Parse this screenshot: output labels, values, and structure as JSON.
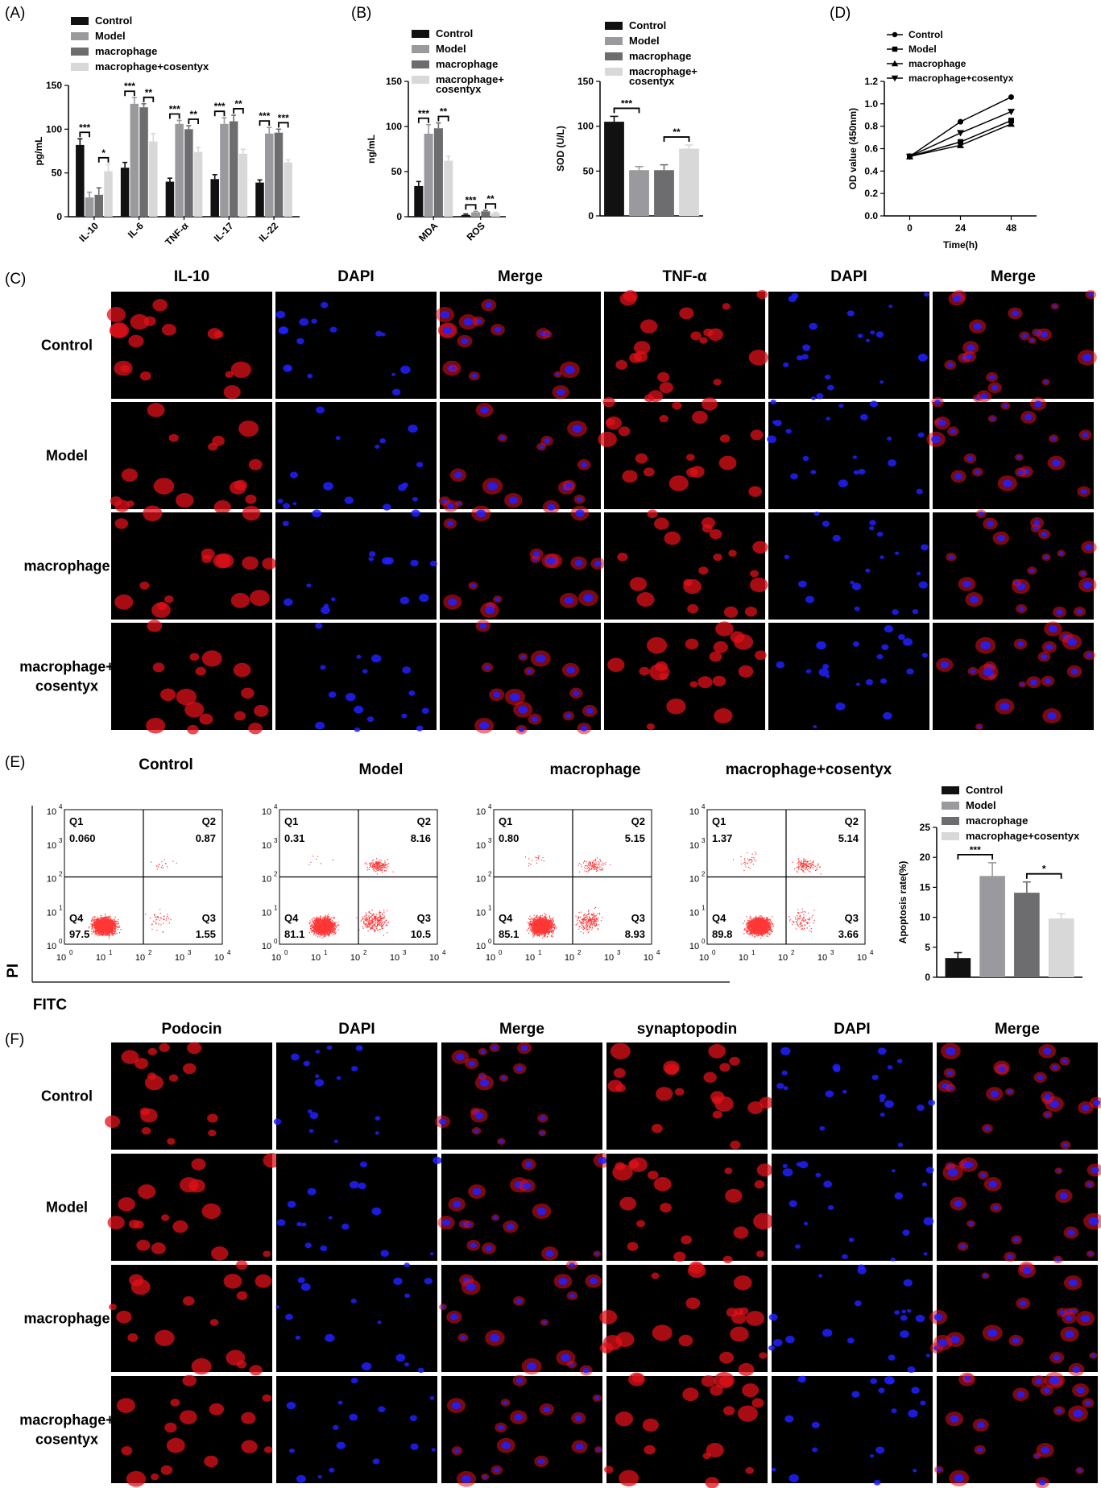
{
  "colors": {
    "Control": "#111111",
    "Model": "#9a9a9e",
    "macrophage": "#6d6d70",
    "macrophage+cosentyx": "#d8d8d8",
    "red_stain": "#e0101a",
    "blue_stain": "#2020ff",
    "flow_dot": "#ff2020"
  },
  "panel_labels": {
    "A": "(A)",
    "B": "(B)",
    "C": "(C)",
    "D": "(D)",
    "E": "(E)",
    "F": "(F)"
  },
  "groups": [
    "Control",
    "Model",
    "macrophage",
    "macrophage+cosentyx"
  ],
  "legend_wrapped": [
    "macrophage+",
    "cosentyx"
  ],
  "chart_data": [
    {
      "id": "A",
      "type": "bar",
      "ylabel": "pg/mL",
      "ylim": [
        0,
        150
      ],
      "yticks": [
        0,
        50,
        100,
        150
      ],
      "categories": [
        "IL-10",
        "IL-6",
        "TNF-α",
        "IL-17",
        "IL-22"
      ],
      "series": [
        {
          "name": "Control",
          "values": [
            82,
            56,
            40,
            43,
            39
          ],
          "errors": [
            7,
            6,
            4,
            5,
            3
          ]
        },
        {
          "name": "Model",
          "values": [
            22,
            129,
            106,
            106,
            95
          ],
          "errors": [
            6,
            7,
            4,
            7,
            7
          ]
        },
        {
          "name": "macrophage",
          "values": [
            25,
            125,
            100,
            109,
            96
          ],
          "errors": [
            8,
            4,
            4,
            7,
            4
          ]
        },
        {
          "name": "macrophage+cosentyx",
          "values": [
            52,
            86,
            74,
            72,
            62
          ],
          "errors": [
            8,
            9,
            5,
            5,
            3
          ]
        }
      ],
      "significance": [
        {
          "category": 0,
          "pair": [
            0,
            1
          ],
          "label": "***"
        },
        {
          "category": 0,
          "pair": [
            2,
            3
          ],
          "label": "*"
        },
        {
          "category": 1,
          "pair": [
            0,
            1
          ],
          "label": "***"
        },
        {
          "category": 1,
          "pair": [
            2,
            3
          ],
          "label": "**"
        },
        {
          "category": 2,
          "pair": [
            0,
            1
          ],
          "label": "***"
        },
        {
          "category": 2,
          "pair": [
            2,
            3
          ],
          "label": "**"
        },
        {
          "category": 3,
          "pair": [
            0,
            1
          ],
          "label": "***"
        },
        {
          "category": 3,
          "pair": [
            2,
            3
          ],
          "label": "**"
        },
        {
          "category": 4,
          "pair": [
            0,
            1
          ],
          "label": "***"
        },
        {
          "category": 4,
          "pair": [
            2,
            3
          ],
          "label": "***"
        }
      ]
    },
    {
      "id": "B1",
      "type": "bar",
      "ylabel": "ng/mL",
      "ylim": [
        0,
        150
      ],
      "yticks": [
        0,
        50,
        100,
        150
      ],
      "categories": [
        "MDA",
        "ROS"
      ],
      "series": [
        {
          "name": "Control",
          "values": [
            34,
            2
          ],
          "errors": [
            5,
            1
          ]
        },
        {
          "name": "Model",
          "values": [
            92,
            5
          ],
          "errors": [
            10,
            1
          ]
        },
        {
          "name": "macrophage",
          "values": [
            98,
            6
          ],
          "errors": [
            6,
            1
          ]
        },
        {
          "name": "macrophage+cosentyx",
          "values": [
            62,
            4
          ],
          "errors": [
            5,
            1
          ]
        }
      ],
      "significance": [
        {
          "category": 0,
          "pair": [
            0,
            1
          ],
          "label": "***"
        },
        {
          "category": 0,
          "pair": [
            2,
            3
          ],
          "label": "**"
        },
        {
          "category": 1,
          "pair": [
            0,
            1
          ],
          "label": "***"
        },
        {
          "category": 1,
          "pair": [
            2,
            3
          ],
          "label": "**"
        }
      ]
    },
    {
      "id": "B2",
      "type": "bar",
      "ylabel": "SOD (U/L)",
      "ylim": [
        0,
        150
      ],
      "yticks": [
        0,
        50,
        100,
        150
      ],
      "categories": [
        "Control",
        "Model",
        "macrophage",
        "macrophage+cosentyx"
      ],
      "values": [
        105,
        51,
        51,
        75
      ],
      "errors": [
        6,
        4,
        6,
        4
      ],
      "significance": [
        {
          "pair": [
            0,
            1
          ],
          "label": "***"
        },
        {
          "pair": [
            2,
            3
          ],
          "label": "**"
        }
      ]
    },
    {
      "id": "D",
      "type": "line",
      "xlabel": "Time(h)",
      "ylabel": "OD value (450nm)",
      "x": [
        0,
        24,
        48
      ],
      "xlim": [
        -12,
        60
      ],
      "ylim": [
        0,
        1.2
      ],
      "yticks": [
        0.0,
        0.2,
        0.4,
        0.6,
        0.8,
        1.0,
        1.2
      ],
      "series": [
        {
          "name": "Control",
          "marker": "circle",
          "values": [
            0.53,
            0.84,
            1.06
          ]
        },
        {
          "name": "Model",
          "marker": "square",
          "values": [
            0.53,
            0.66,
            0.85
          ]
        },
        {
          "name": "macrophage",
          "marker": "triangle-up",
          "values": [
            0.53,
            0.63,
            0.82
          ]
        },
        {
          "name": "macrophage+cosentyx",
          "marker": "triangle-down",
          "values": [
            0.53,
            0.74,
            0.93
          ]
        }
      ]
    },
    {
      "id": "E-bar",
      "type": "bar",
      "ylabel": "Apoptosis rate(%)",
      "ylim": [
        0,
        25
      ],
      "yticks": [
        0,
        5,
        10,
        15,
        20,
        25
      ],
      "categories": [
        "Control",
        "Model",
        "macrophage",
        "macrophage+cosentyx"
      ],
      "values": [
        3.2,
        16.9,
        14.1,
        9.8
      ],
      "errors": [
        0.9,
        2.2,
        1.8,
        0.8
      ],
      "significance": [
        {
          "pair": [
            0,
            1
          ],
          "label": "***"
        },
        {
          "pair": [
            2,
            3
          ],
          "label": "*"
        }
      ]
    },
    {
      "id": "E-flow",
      "type": "scatter",
      "xlabel": "FITC",
      "ylabel": "PI",
      "tick_base": "10",
      "tick_exps": [
        "0",
        "1",
        "2",
        "3",
        "4"
      ],
      "quadrant_names": [
        "Q1",
        "Q2",
        "Q3",
        "Q4"
      ],
      "plots": [
        {
          "title": "Control",
          "Q1": "0.060",
          "Q2": "0.87",
          "Q3": "1.55",
          "Q4": "97.5"
        },
        {
          "title": "Model",
          "Q1": "0.31",
          "Q2": "8.16",
          "Q3": "10.5",
          "Q4": "81.1"
        },
        {
          "title": "macrophage",
          "Q1": "0.80",
          "Q2": "5.15",
          "Q3": "8.93",
          "Q4": "85.1"
        },
        {
          "title": "macrophage+cosentyx",
          "Q1": "1.37",
          "Q2": "5.14",
          "Q3": "3.66",
          "Q4": "89.8"
        }
      ]
    }
  ],
  "panel_C": {
    "columns": [
      "IL-10",
      "DAPI",
      "Merge",
      "TNF-α",
      "DAPI",
      "Merge"
    ],
    "rows": [
      "Control",
      "Model",
      "macrophage",
      "macrophage+\ncosentyx"
    ],
    "channels": [
      "red",
      "blue",
      "merge",
      "red",
      "blue",
      "merge"
    ]
  },
  "panel_F": {
    "columns": [
      "Podocin",
      "DAPI",
      "Merge",
      "synaptopodin",
      "DAPI",
      "Merge"
    ],
    "rows": [
      "Control",
      "Model",
      "macrophage",
      "macrophage+\ncosentyx"
    ],
    "channels": [
      "red",
      "blue",
      "merge",
      "red",
      "blue",
      "merge"
    ]
  }
}
